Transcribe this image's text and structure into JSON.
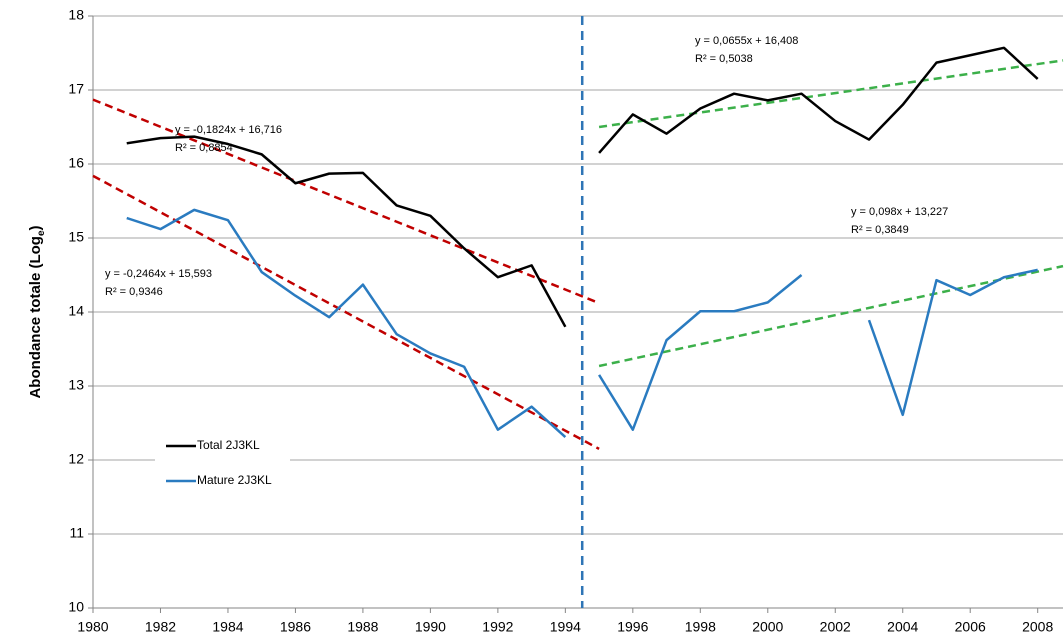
{
  "chart_data": {
    "type": "line",
    "ylabel_parts": [
      "Abondance totale (Log",
      "e",
      ")"
    ],
    "x": [
      1981,
      1982,
      1983,
      1984,
      1985,
      1986,
      1987,
      1988,
      1989,
      1990,
      1991,
      1992,
      1993,
      1994,
      1995,
      1996,
      1997,
      1998,
      1999,
      2000,
      2001,
      2002,
      2003,
      2004,
      2005,
      2006,
      2007,
      2008
    ],
    "series": [
      {
        "name": "Total 2J3KL",
        "color": "#000000",
        "values": [
          16.28,
          16.35,
          16.37,
          16.27,
          16.13,
          15.74,
          15.87,
          15.88,
          15.44,
          15.3,
          14.86,
          14.47,
          14.63,
          13.8,
          16.15,
          16.67,
          16.41,
          16.75,
          16.95,
          16.86,
          16.95,
          16.58,
          16.33,
          16.8,
          17.37,
          17.47,
          17.57,
          17.15
        ]
      },
      {
        "name": "Mature 2J3KL",
        "color": "#2a7bc0",
        "values": [
          15.27,
          15.12,
          15.38,
          15.24,
          14.54,
          14.22,
          13.93,
          14.37,
          13.7,
          13.44,
          13.26,
          12.41,
          12.72,
          12.31,
          13.15,
          12.41,
          13.62,
          14.01,
          14.01,
          14.13,
          14.5,
          null,
          13.89,
          12.61,
          14.43,
          14.23,
          14.47,
          14.57
        ]
      }
    ],
    "trendlines": [
      {
        "color": "#c00000",
        "x": [
          1980,
          1995
        ],
        "values": [
          16.87,
          14.12
        ],
        "equation": "y = -0,1824x + 16,716",
        "r2": "R² = 0,8854"
      },
      {
        "color": "#c00000",
        "x": [
          1980,
          1995
        ],
        "values": [
          15.84,
          12.15
        ],
        "equation": "y = -0,2464x + 15,593",
        "r2": "R² = 0,9346"
      },
      {
        "color": "#3cb04a",
        "x": [
          1995,
          2008.75
        ],
        "values": [
          16.5,
          17.4
        ],
        "equation": "y = 0,0655x + 16,408",
        "r2": "R² = 0,5038"
      },
      {
        "color": "#3cb04a",
        "x": [
          1995,
          2008.75
        ],
        "values": [
          13.27,
          14.62
        ],
        "equation": "y = 0,098x + 13,227",
        "r2": "R² = 0,3849"
      }
    ],
    "break_x": 1994.5,
    "break_color": "#2e75b6",
    "xlim": [
      1980,
      2008.75
    ],
    "xticks": [
      1980,
      1982,
      1984,
      1986,
      1988,
      1990,
      1992,
      1994,
      1996,
      1998,
      2000,
      2002,
      2004,
      2006,
      2008
    ],
    "ylim": [
      10,
      18
    ],
    "yticks": [
      10,
      11,
      12,
      13,
      14,
      15,
      16,
      17,
      18
    ],
    "grid": true
  }
}
